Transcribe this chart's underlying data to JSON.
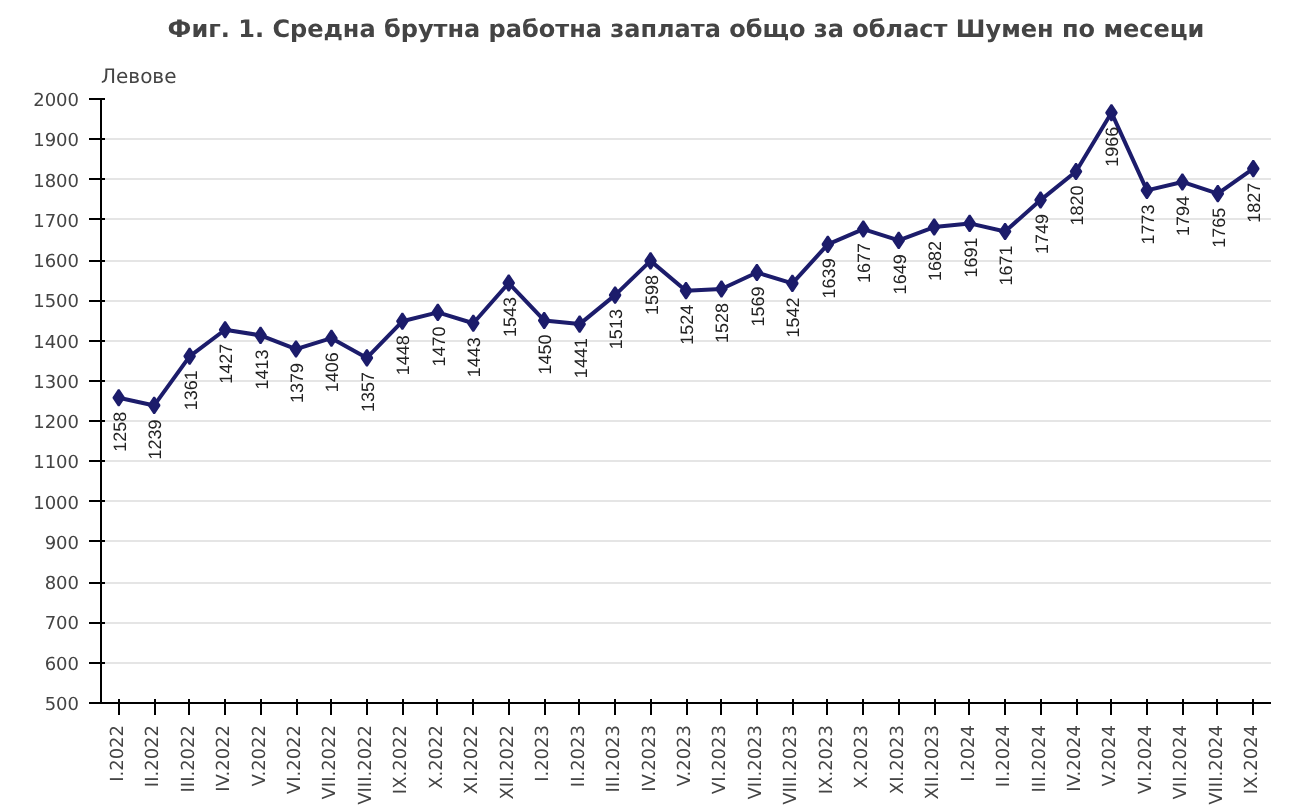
{
  "chart_data": {
    "type": "line",
    "title": "Фиг. 1. Средна брутна работна заплата общо за област Шумен по месеци",
    "ylabel": "Левове",
    "categories": [
      "I.2022",
      "II.2022",
      "III.2022",
      "IV.2022",
      "V.2022",
      "VI.2022",
      "VII.2022",
      "VIII.2022",
      "IX.2022",
      "X.2022",
      "XI.2022",
      "XII.2022",
      "I.2023",
      "II.2023",
      "III.2023",
      "IV.2023",
      "V.2023",
      "VI.2023",
      "VII.2023",
      "VIII.2023",
      "IX.2023",
      "X.2023",
      "XI.2023",
      "XII.2023",
      "I.2024",
      "II.2024",
      "III.2024",
      "IV.2024",
      "V.2024",
      "VI.2024",
      "VII.2024",
      "VIII.2024",
      "IX.2024"
    ],
    "series": [
      {
        "color": "#1c1c6b",
        "values": [
          1258,
          1239,
          1361,
          1427,
          1413,
          1379,
          1406,
          1357,
          1448,
          1470,
          1443,
          1543,
          1450,
          1441,
          1513,
          1598,
          1524,
          1528,
          1569,
          1542,
          1639,
          1677,
          1649,
          1682,
          1691,
          1671,
          1749,
          1820,
          1966,
          1773,
          1794,
          1765,
          1827
        ]
      }
    ],
    "ylim": [
      500,
      2000
    ],
    "yticks": [
      500,
      600,
      700,
      800,
      900,
      1000,
      1100,
      1200,
      1300,
      1400,
      1500,
      1600,
      1700,
      1800,
      1900,
      2000
    ],
    "grid": "y",
    "marker": "diamond",
    "line_style": "solid",
    "data_labels": true
  }
}
